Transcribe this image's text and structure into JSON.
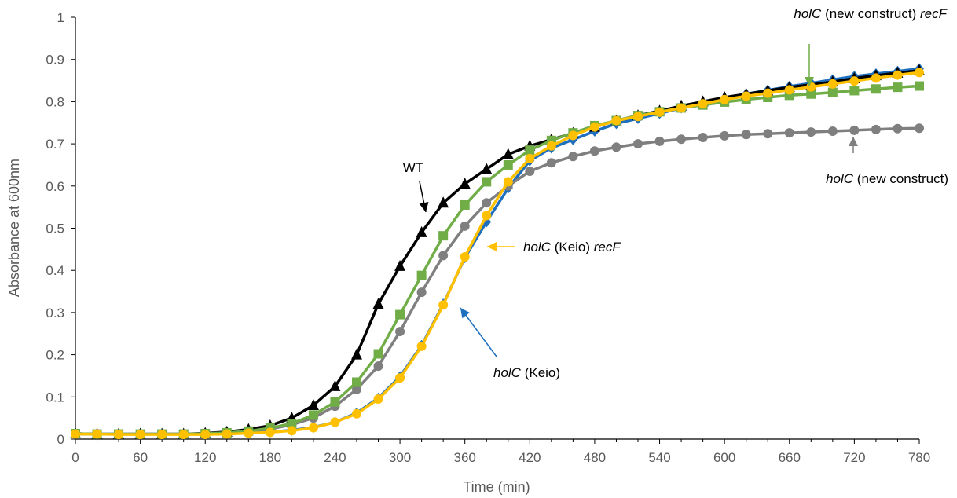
{
  "chart_data": {
    "type": "line",
    "xlabel": "Time (min)",
    "ylabel": "Absorbance at 600nm",
    "xlim": [
      0,
      780
    ],
    "ylim": [
      0,
      1
    ],
    "xticks": [
      "0",
      "60",
      "120",
      "180",
      "240",
      "300",
      "360",
      "420",
      "480",
      "540",
      "600",
      "660",
      "720",
      "780"
    ],
    "yticks": [
      "0",
      "0.1",
      "0.2",
      "0.3",
      "0.4",
      "0.5",
      "0.6",
      "0.7",
      "0.8",
      "0.9",
      "1"
    ],
    "grid": false,
    "x": [
      0,
      20,
      40,
      60,
      80,
      100,
      120,
      140,
      160,
      180,
      200,
      220,
      240,
      260,
      280,
      300,
      320,
      340,
      360,
      380,
      400,
      420,
      440,
      460,
      480,
      500,
      520,
      540,
      560,
      580,
      600,
      620,
      640,
      660,
      680,
      700,
      720,
      740,
      760,
      780
    ],
    "series": [
      {
        "key": "keio",
        "color": "#1f6fbf",
        "marker": "diamond",
        "values": [
          0.013,
          0.012,
          0.012,
          0.012,
          0.012,
          0.012,
          0.012,
          0.013,
          0.015,
          0.017,
          0.021,
          0.028,
          0.04,
          0.062,
          0.097,
          0.148,
          0.222,
          0.32,
          0.43,
          0.515,
          0.595,
          0.66,
          0.69,
          0.71,
          0.73,
          0.748,
          0.76,
          0.772,
          0.785,
          0.797,
          0.808,
          0.818,
          0.827,
          0.836,
          0.844,
          0.852,
          0.86,
          0.866,
          0.872,
          0.878
        ]
      },
      {
        "key": "wt",
        "color": "#000000",
        "marker": "triangle",
        "values": [
          0.013,
          0.012,
          0.012,
          0.012,
          0.012,
          0.012,
          0.014,
          0.017,
          0.023,
          0.032,
          0.05,
          0.08,
          0.125,
          0.2,
          0.32,
          0.41,
          0.49,
          0.56,
          0.605,
          0.64,
          0.675,
          0.695,
          0.71,
          0.725,
          0.74,
          0.755,
          0.767,
          0.778,
          0.79,
          0.8,
          0.81,
          0.818,
          0.826,
          0.834,
          0.84,
          0.847,
          0.855,
          0.862,
          0.868,
          0.874
        ]
      },
      {
        "key": "new",
        "color": "#7f7f7f",
        "marker": "circle",
        "values": [
          0.012,
          0.012,
          0.012,
          0.012,
          0.012,
          0.012,
          0.013,
          0.015,
          0.018,
          0.024,
          0.034,
          0.05,
          0.078,
          0.118,
          0.173,
          0.255,
          0.348,
          0.435,
          0.505,
          0.56,
          0.6,
          0.635,
          0.655,
          0.67,
          0.683,
          0.692,
          0.7,
          0.706,
          0.711,
          0.715,
          0.719,
          0.722,
          0.724,
          0.726,
          0.728,
          0.73,
          0.732,
          0.734,
          0.736,
          0.737
        ]
      },
      {
        "key": "new_recf",
        "color": "#70ad47",
        "marker": "square",
        "values": [
          0.013,
          0.012,
          0.012,
          0.012,
          0.012,
          0.012,
          0.013,
          0.015,
          0.019,
          0.026,
          0.037,
          0.057,
          0.088,
          0.135,
          0.202,
          0.295,
          0.388,
          0.482,
          0.555,
          0.61,
          0.65,
          0.685,
          0.708,
          0.726,
          0.743,
          0.755,
          0.767,
          0.776,
          0.785,
          0.792,
          0.799,
          0.805,
          0.81,
          0.815,
          0.818,
          0.822,
          0.826,
          0.83,
          0.834,
          0.837
        ]
      },
      {
        "key": "keio_recf",
        "color": "#ffc000",
        "marker": "circle",
        "values": [
          0.012,
          0.012,
          0.011,
          0.011,
          0.011,
          0.011,
          0.011,
          0.012,
          0.014,
          0.016,
          0.02,
          0.027,
          0.04,
          0.06,
          0.095,
          0.145,
          0.22,
          0.318,
          0.432,
          0.53,
          0.61,
          0.665,
          0.695,
          0.72,
          0.74,
          0.755,
          0.765,
          0.775,
          0.785,
          0.795,
          0.805,
          0.813,
          0.82,
          0.828,
          0.835,
          0.842,
          0.849,
          0.856,
          0.863,
          0.869
        ]
      }
    ],
    "annotations": [
      {
        "key": "wt",
        "text": "WT",
        "italic": "",
        "rest": ""
      },
      {
        "key": "new_recf",
        "italic": "holC",
        "text": " (new construct) ",
        "rest": "recF"
      },
      {
        "key": "new",
        "italic": "holC",
        "text": " (new construct)",
        "rest": ""
      },
      {
        "key": "keio_recf",
        "italic": "holC",
        "text": " (Keio) ",
        "rest": "recF"
      },
      {
        "key": "keio",
        "italic": "holC",
        "text": " (Keio)",
        "rest": ""
      }
    ]
  }
}
